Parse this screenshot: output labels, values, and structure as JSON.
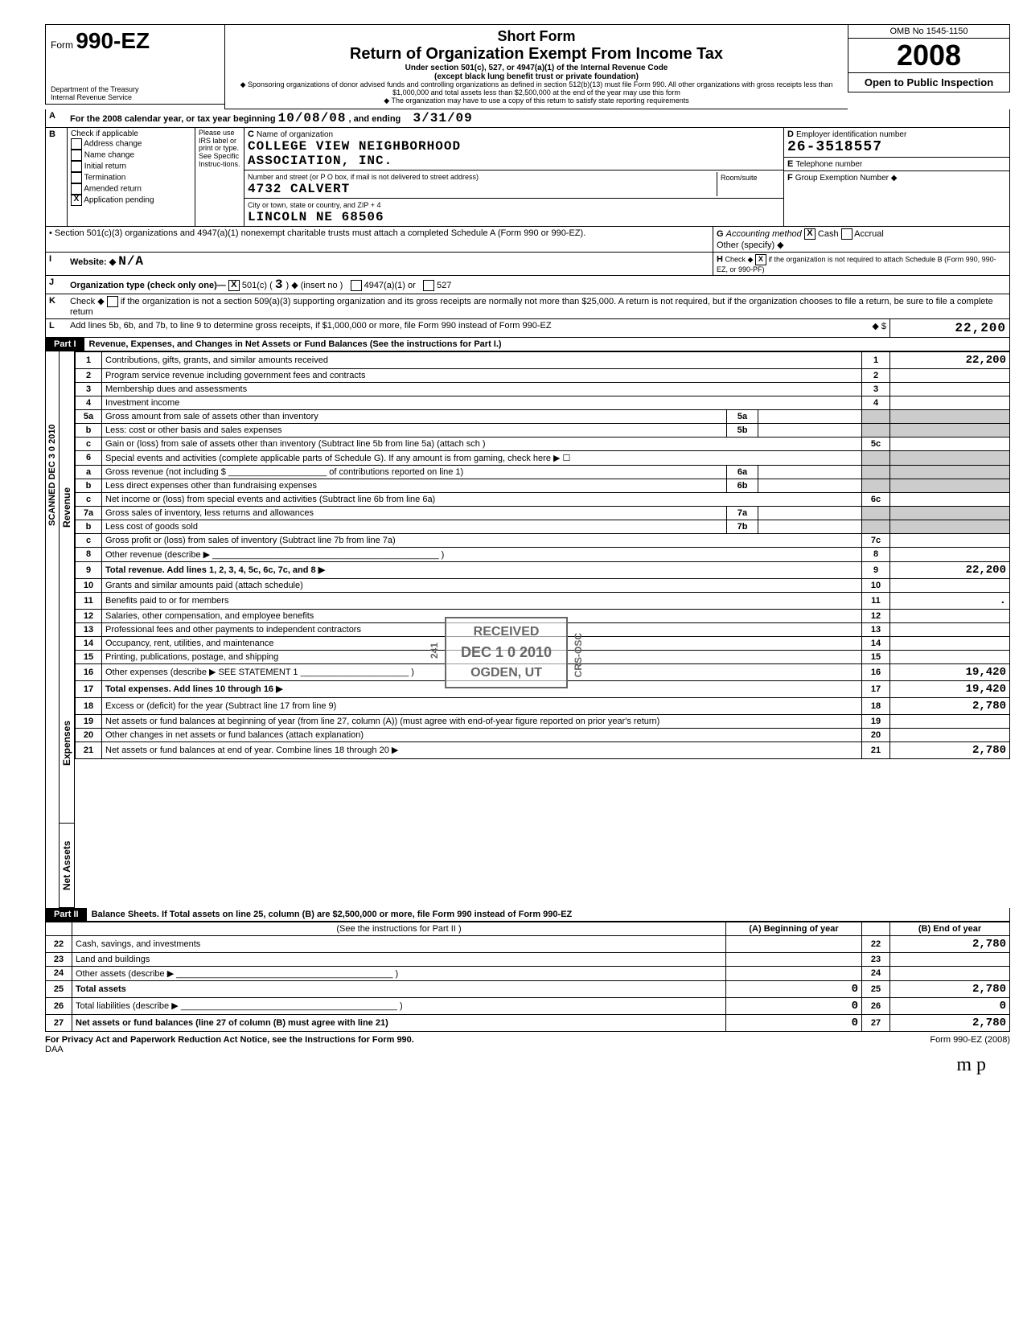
{
  "header": {
    "form_label": "Form",
    "form_number": "990-EZ",
    "dept1": "Department of the Treasury",
    "dept2": "Internal Revenue Service",
    "short_form": "Short Form",
    "return_title": "Return of Organization Exempt From Income Tax",
    "under": "Under section 501(c), 527, or 4947(a)(1) of the Internal Revenue Code",
    "except": "(except black lung benefit trust or private foundation)",
    "sponsor": "◆ Sponsoring organizations of donor advised funds and controlling organizations as defined in section 512(b)(13) must file Form 990. All other organizations with gross receipts less than $1,000,000 and total assets less than $2,500,000 at the end of the year may use this form",
    "copy": "◆ The organization may have to use a copy of this return to satisfy state reporting requirements",
    "omb": "OMB No 1545-1150",
    "year": "2008",
    "open": "Open to Public Inspection"
  },
  "lineA": {
    "label": "A",
    "text": "For the 2008 calendar year, or tax year beginning",
    "begin": "10/08/08",
    "and": ", and ending",
    "end": "3/31/09"
  },
  "blockB": {
    "label": "B",
    "check": "Check if applicable",
    "please": "Please use IRS label or print or type. See Specific Instruc-tions.",
    "items": [
      "Address change",
      "Name change",
      "Initial return",
      "Termination",
      "Amended return",
      "Application pending"
    ],
    "app_pending_checked": "X"
  },
  "blockC": {
    "label": "C",
    "name_lbl": "Name of organization",
    "name1": "COLLEGE VIEW NEIGHBORHOOD",
    "name2": "ASSOCIATION, INC.",
    "street_lbl": "Number and street (or P O box, if mail is not delivered to street address)",
    "street": "4732 CALVERT",
    "room_lbl": "Room/suite",
    "city_lbl": "City or town, state or country, and ZIP + 4",
    "city": "LINCOLN                    NE  68506"
  },
  "blockD": {
    "label": "D",
    "lbl": "Employer identification number",
    "val": "26-3518557"
  },
  "blockE": {
    "label": "E",
    "lbl": "Telephone number",
    "val": ""
  },
  "blockF": {
    "label": "F",
    "lbl": "Group Exemption Number ◆",
    "val": ""
  },
  "section501": "• Section 501(c)(3) organizations and 4947(a)(1) nonexempt charitable trusts must attach a completed Schedule A (Form 990 or 990-EZ).",
  "blockG": {
    "label": "G",
    "lbl": "Accounting method",
    "cash": "Cash",
    "accrual": "Accrual",
    "other": "Other (specify) ◆",
    "cash_checked": "X"
  },
  "blockH": {
    "label": "H",
    "lbl": "Check ◆",
    "checked": "X",
    "txt": "if the organization is not required to attach Schedule B (Form 990, 990-EZ, or 990-PF)"
  },
  "lineI": {
    "label": "I",
    "lbl": "Website: ◆",
    "val": "N/A"
  },
  "lineJ": {
    "label": "J",
    "lbl": "Organization type (check only one)—",
    "c501": "501(c) (",
    "cnum": "3",
    "cins": ") ◆ (insert no )",
    "c4947": "4947(a)(1) or",
    "c527": "527",
    "checked": "X"
  },
  "lineK": {
    "label": "K",
    "lbl": "Check ◆",
    "txt": "if the organization is not a section 509(a)(3) supporting organization and its gross receipts are normally not more than $25,000. A return is not required, but if the organization chooses to file a return, be sure to file a complete return"
  },
  "lineL": {
    "label": "L",
    "txt": "Add lines 5b, 6b, and 7b, to line 9 to determine gross receipts, if $1,000,000 or more, file Form 990 instead of Form 990-EZ",
    "arrow": "◆ $",
    "val": "22,200"
  },
  "part1": {
    "label": "Part I",
    "title": "Revenue, Expenses, and Changes in Net Assets or Fund Balances (See the instructions for Part I.)"
  },
  "sideLabels": {
    "scanned": "SCANNED DEC 3 0 2010",
    "revenue": "Revenue",
    "expenses": "Expenses",
    "netassets": "Net Assets"
  },
  "stamp": {
    "l1": "RECEIVED",
    "l2": "DEC 1 0 2010",
    "l3": "OGDEN, UT",
    "side1": "241",
    "side2": "CRS-OSC"
  },
  "lines": [
    {
      "n": "1",
      "d": "Contributions, gifts, grants, and similar amounts received",
      "num": "1",
      "amt": "22,200"
    },
    {
      "n": "2",
      "d": "Program service revenue including government fees and contracts",
      "num": "2",
      "amt": ""
    },
    {
      "n": "3",
      "d": "Membership dues and assessments",
      "num": "3",
      "amt": ""
    },
    {
      "n": "4",
      "d": "Investment income",
      "num": "4",
      "amt": ""
    },
    {
      "n": "5a",
      "d": "Gross amount from sale of assets other than inventory",
      "sub": "5a"
    },
    {
      "n": "b",
      "d": "Less: cost or other basis and sales expenses",
      "sub": "5b"
    },
    {
      "n": "c",
      "d": "Gain or (loss) from sale of assets other than inventory (Subtract line 5b from line 5a) (attach sch )",
      "num": "5c",
      "amt": ""
    },
    {
      "n": "6",
      "d": "Special events and activities (complete applicable parts of Schedule G). If any amount is from gaming, check here   ▶ ☐"
    },
    {
      "n": "a",
      "d": "Gross revenue (not including  $ ____________________ of contributions reported on line 1)",
      "sub": "6a"
    },
    {
      "n": "b",
      "d": "Less direct expenses other than fundraising expenses",
      "sub": "6b"
    },
    {
      "n": "c",
      "d": "Net income or (loss) from special events and activities (Subtract line 6b from line 6a)",
      "num": "6c",
      "amt": ""
    },
    {
      "n": "7a",
      "d": "Gross sales of inventory, less returns and allowances",
      "sub": "7a"
    },
    {
      "n": "b",
      "d": "Less cost of goods sold",
      "sub": "7b"
    },
    {
      "n": "c",
      "d": "Gross profit or (loss) from sales of inventory (Subtract line 7b from line 7a)",
      "num": "7c",
      "amt": ""
    },
    {
      "n": "8",
      "d": "Other revenue (describe ▶ ______________________________________________ )",
      "num": "8",
      "amt": ""
    },
    {
      "n": "9",
      "d": "Total revenue. Add lines 1, 2, 3, 4, 5c, 6c, 7c, and 8                                                                           ▶",
      "num": "9",
      "amt": "22,200",
      "bold": true
    },
    {
      "n": "10",
      "d": "Grants and similar amounts paid (attach schedule)",
      "num": "10",
      "amt": ""
    },
    {
      "n": "11",
      "d": "Benefits paid to or for members",
      "num": "11",
      "amt": "."
    },
    {
      "n": "12",
      "d": "Salaries, other compensation, and employee benefits",
      "num": "12",
      "amt": ""
    },
    {
      "n": "13",
      "d": "Professional fees and other payments to independent contractors",
      "num": "13",
      "amt": ""
    },
    {
      "n": "14",
      "d": "Occupancy, rent, utilities, and maintenance",
      "num": "14",
      "amt": ""
    },
    {
      "n": "15",
      "d": "Printing, publications, postage, and shipping",
      "num": "15",
      "amt": ""
    },
    {
      "n": "16",
      "d": "Other expenses (describe ▶  SEE STATEMENT 1 ______________________ )",
      "num": "16",
      "amt": "19,420"
    },
    {
      "n": "17",
      "d": "Total expenses. Add lines 10 through 16                                                                                         ▶",
      "num": "17",
      "amt": "19,420",
      "bold": true
    },
    {
      "n": "18",
      "d": "Excess or (deficit) for the year (Subtract line 17 from line 9)",
      "num": "18",
      "amt": "2,780"
    },
    {
      "n": "19",
      "d": "Net assets or fund balances at beginning of year (from line 27, column (A)) (must agree with end-of-year figure reported on prior year's return)",
      "num": "19",
      "amt": ""
    },
    {
      "n": "20",
      "d": "Other changes in net assets or fund balances (attach explanation)",
      "num": "20",
      "amt": ""
    },
    {
      "n": "21",
      "d": "Net assets or fund balances at end of year. Combine lines 18 through 20                                                  ▶",
      "num": "21",
      "amt": "2,780"
    }
  ],
  "part2": {
    "label": "Part II",
    "title": "Balance Sheets. If Total assets on line 25, column (B) are $2,500,000 or more, file Form 990 instead of Form 990-EZ",
    "see": "(See the instructions for Part II )",
    "colA": "(A) Beginning of year",
    "colB": "(B) End of year"
  },
  "bs": [
    {
      "n": "22",
      "d": "Cash, savings, and investments",
      "a": "",
      "num": "22",
      "b": "2,780"
    },
    {
      "n": "23",
      "d": "Land and buildings",
      "a": "",
      "num": "23",
      "b": ""
    },
    {
      "n": "24",
      "d": "Other assets (describe ▶ ____________________________________________ )",
      "a": "",
      "num": "24",
      "b": ""
    },
    {
      "n": "25",
      "d": "Total assets",
      "a": "0",
      "num": "25",
      "b": "2,780",
      "bold": true
    },
    {
      "n": "26",
      "d": "Total liabilities (describe ▶ ____________________________________________ )",
      "a": "0",
      "num": "26",
      "b": "0"
    },
    {
      "n": "27",
      "d": "Net assets or fund balances (line 27 of column (B) must agree with line 21)",
      "a": "0",
      "num": "27",
      "b": "2,780",
      "bold": true
    }
  ],
  "footer": {
    "privacy": "For Privacy Act and Paperwork Reduction Act Notice, see the Instructions for Form 990.",
    "daa": "DAA",
    "form": "Form 990-EZ (2008)"
  },
  "handwritten": "m p"
}
